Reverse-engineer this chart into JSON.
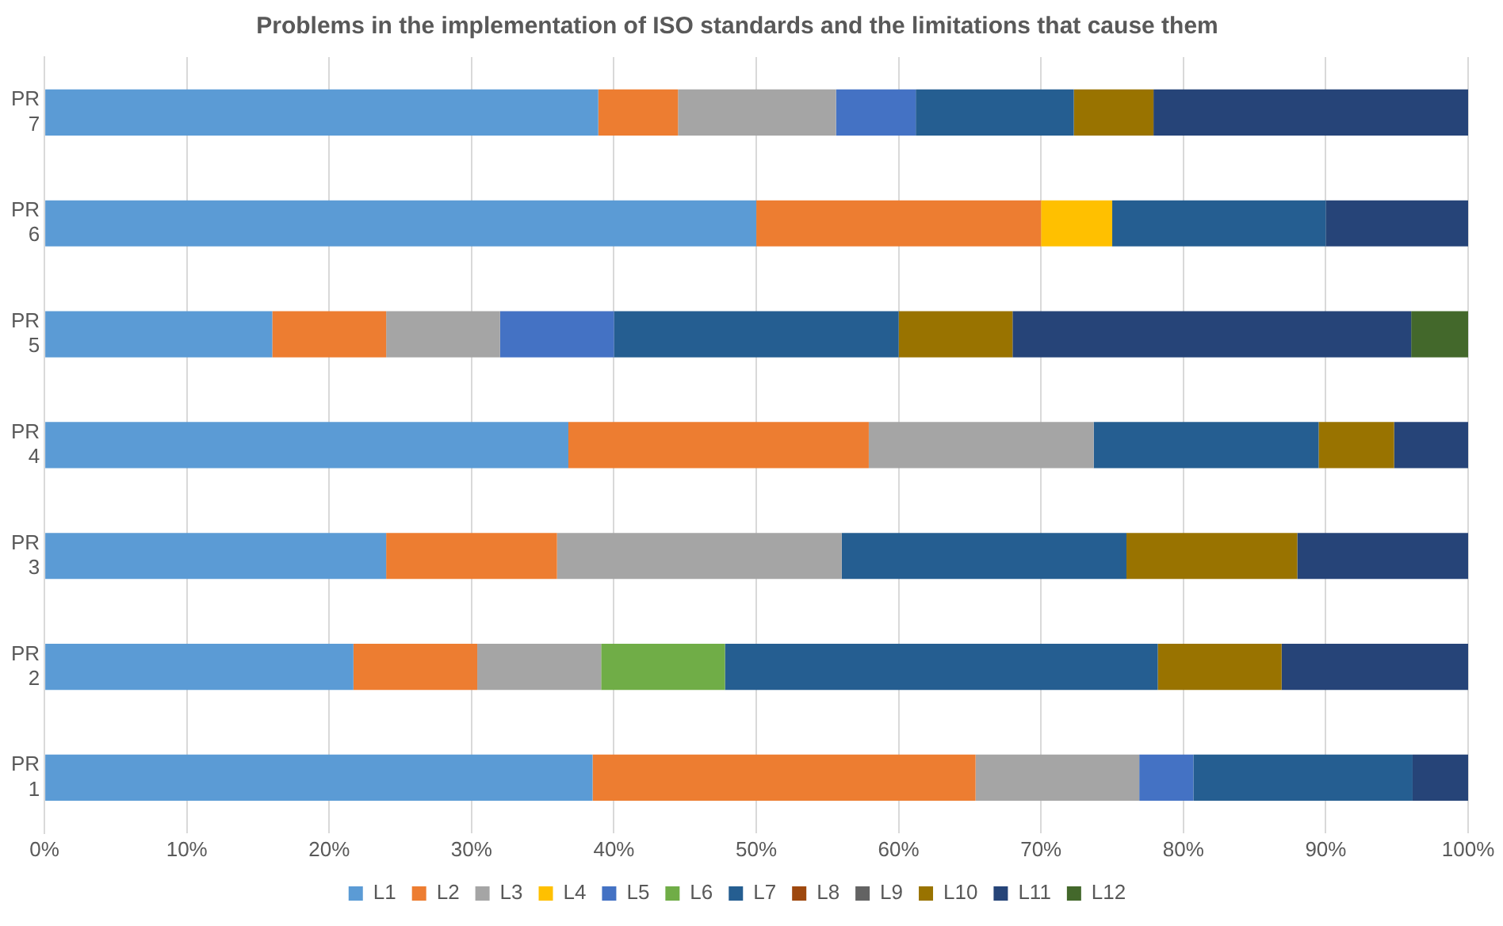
{
  "chart_data": {
    "type": "bar",
    "orientation": "horizontal",
    "stacked": true,
    "title": "Problems in the implementation of ISO standards and the limitations that cause them",
    "categories": [
      "PR 7",
      "PR 6",
      "PR 5",
      "PR 4",
      "PR 3",
      "PR 2",
      "PR 1"
    ],
    "series": [
      {
        "name": "L1",
        "color": "#5b9bd5",
        "values": [
          38.9,
          50,
          16,
          36.8,
          24,
          21.7,
          38.5
        ]
      },
      {
        "name": "L2",
        "color": "#ed7d31",
        "values": [
          5.6,
          20,
          8,
          21.1,
          12,
          8.7,
          26.9
        ]
      },
      {
        "name": "L3",
        "color": "#a5a5a5",
        "values": [
          11.1,
          null,
          8,
          15.8,
          20,
          8.7,
          11.5
        ]
      },
      {
        "name": "L4",
        "color": "#ffc000",
        "values": [
          null,
          5,
          null,
          null,
          null,
          null,
          null
        ]
      },
      {
        "name": "L5",
        "color": "#4472c4",
        "values": [
          5.6,
          null,
          8,
          null,
          null,
          null,
          3.8
        ]
      },
      {
        "name": "L6",
        "color": "#70ad47",
        "values": [
          null,
          null,
          null,
          null,
          null,
          8.7,
          null
        ]
      },
      {
        "name": "L7",
        "color": "#255e91",
        "values": [
          11.1,
          15,
          20,
          15.8,
          20,
          30.4,
          15.4
        ]
      },
      {
        "name": "L8",
        "color": "#9e480e",
        "values": [
          null,
          null,
          null,
          null,
          null,
          null,
          null
        ]
      },
      {
        "name": "L9",
        "color": "#636363",
        "values": [
          null,
          null,
          null,
          null,
          null,
          null,
          null
        ]
      },
      {
        "name": "L10",
        "color": "#997300",
        "values": [
          5.6,
          null,
          8,
          5.3,
          12,
          8.7,
          null
        ]
      },
      {
        "name": "L11",
        "color": "#264478",
        "values": [
          22.1,
          10,
          28,
          5.2,
          12,
          13.1,
          3.9
        ]
      },
      {
        "name": "L12",
        "color": "#43682b",
        "values": [
          null,
          null,
          4,
          null,
          null,
          null,
          null
        ]
      }
    ],
    "xlim": [
      0,
      100
    ],
    "xticks": [
      {
        "value": 0,
        "label": "0%"
      },
      {
        "value": 10,
        "label": "10%"
      },
      {
        "value": 20,
        "label": "20%"
      },
      {
        "value": 30,
        "label": "30%"
      },
      {
        "value": 40,
        "label": "40%"
      },
      {
        "value": 50,
        "label": "50%"
      },
      {
        "value": 60,
        "label": "60%"
      },
      {
        "value": 70,
        "label": "70%"
      },
      {
        "value": 80,
        "label": "80%"
      },
      {
        "value": 90,
        "label": "90%"
      },
      {
        "value": 100,
        "label": "100%"
      }
    ],
    "grid": "x",
    "legend": "bottom"
  }
}
